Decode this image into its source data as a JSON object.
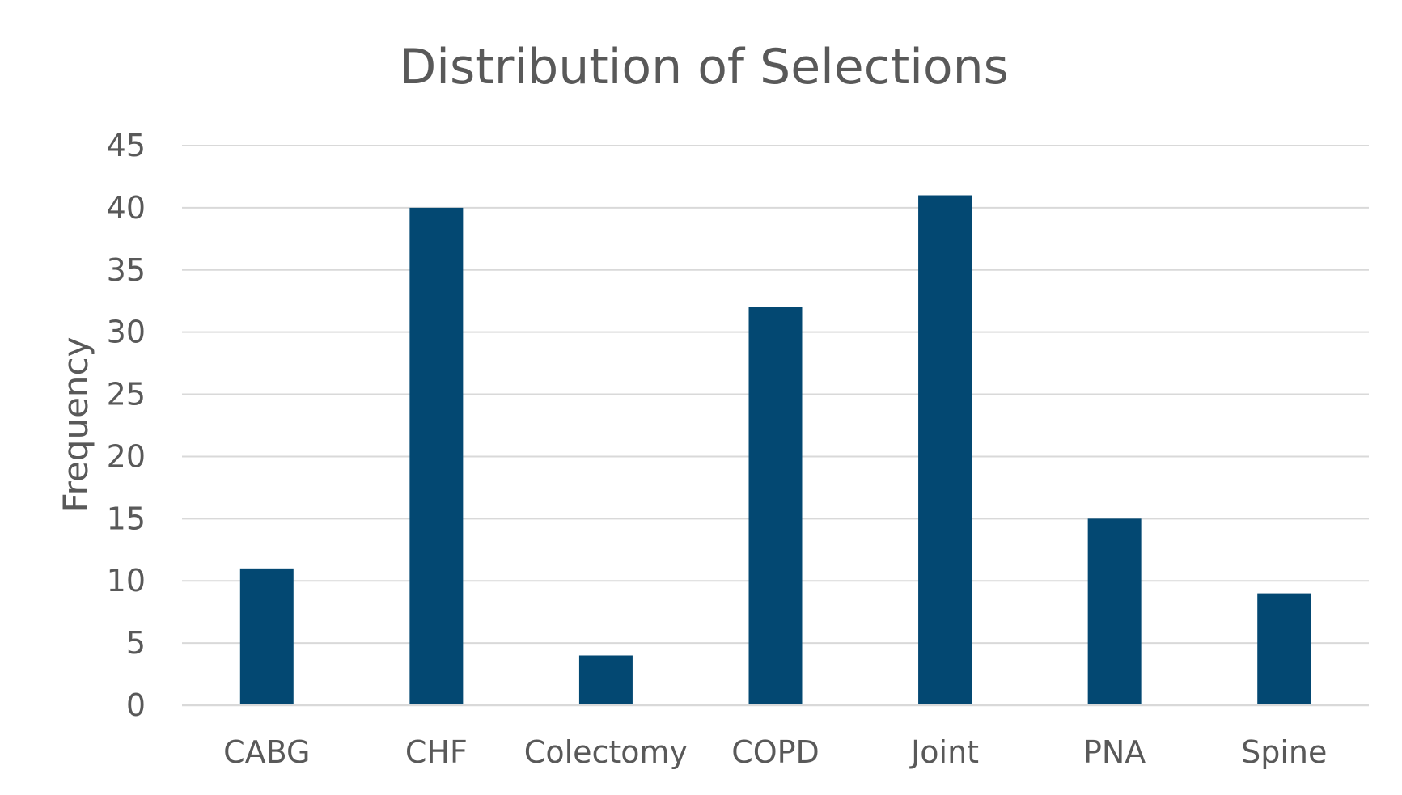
{
  "chart_data": {
    "type": "bar",
    "title": "Distribution of  Selections",
    "xlabel": "",
    "ylabel": "Frequency",
    "categories": [
      "CABG",
      "CHF",
      "Colectomy",
      "COPD",
      "Joint",
      "PNA",
      "Spine"
    ],
    "values": [
      11,
      40,
      4,
      32,
      41,
      15,
      9
    ],
    "ylim": [
      0,
      45
    ],
    "yticks": [
      0,
      5,
      10,
      15,
      20,
      25,
      30,
      35,
      40,
      45
    ],
    "grid": true,
    "legend": "none",
    "colors": {
      "bar": "#034872",
      "grid": "#d9d9d9",
      "text": "#595959"
    }
  }
}
